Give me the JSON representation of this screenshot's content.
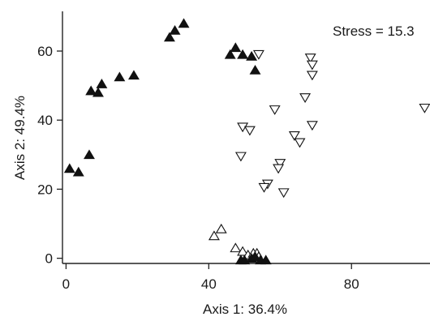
{
  "chart_data": {
    "type": "scatter",
    "title": "",
    "xlabel": "Axis 1: 36.4%",
    "ylabel": "Axis 2: 49.4%",
    "annotation": "Stress = 15.3",
    "xlim": [
      -1,
      102
    ],
    "ylim": [
      -1.5,
      71.5
    ],
    "xticks": [
      0,
      40,
      80
    ],
    "yticks": [
      0,
      20,
      40,
      60
    ],
    "grid": false,
    "legend": "none",
    "series": [
      {
        "marker": "filled-triangle-up",
        "color": "#111111",
        "points": [
          [
            1,
            26
          ],
          [
            3.5,
            25
          ],
          [
            6.5,
            30
          ],
          [
            7,
            48.5
          ],
          [
            9,
            48
          ],
          [
            10,
            50.5
          ],
          [
            15,
            52.5
          ],
          [
            19,
            53
          ],
          [
            29,
            64
          ],
          [
            30.5,
            66
          ],
          [
            33,
            68
          ],
          [
            46,
            59
          ],
          [
            47.5,
            61
          ],
          [
            49.5,
            59
          ],
          [
            52,
            58.5
          ],
          [
            53,
            54.5
          ]
        ]
      },
      {
        "marker": "open-triangle-down",
        "color": "#111111",
        "points": [
          [
            54,
            59
          ],
          [
            68.5,
            58
          ],
          [
            69,
            56
          ],
          [
            69,
            53
          ],
          [
            58.5,
            43
          ],
          [
            67,
            46.5
          ],
          [
            49.5,
            38
          ],
          [
            51.5,
            37
          ],
          [
            64,
            35.5
          ],
          [
            65.5,
            33.5
          ],
          [
            69,
            38.5
          ],
          [
            49,
            29.5
          ],
          [
            60,
            27.5
          ],
          [
            59.5,
            26
          ],
          [
            56.5,
            21.5
          ],
          [
            55.5,
            20.5
          ],
          [
            61,
            19
          ],
          [
            100.5,
            43.5
          ]
        ]
      },
      {
        "marker": "open-triangle-up",
        "color": "#111111",
        "points": [
          [
            41.5,
            6.5
          ],
          [
            43.5,
            8.5
          ],
          [
            47.5,
            3
          ],
          [
            49.5,
            2
          ],
          [
            51,
            1
          ],
          [
            52.5,
            1.5
          ],
          [
            53.5,
            1.5
          ],
          [
            54,
            0.5
          ]
        ]
      },
      {
        "marker": "filled-triangle-up",
        "color": "#111111",
        "points": [
          [
            49,
            -0.5
          ],
          [
            50,
            -0.5
          ],
          [
            52,
            0
          ],
          [
            53,
            0.5
          ],
          [
            54.5,
            -0.5
          ],
          [
            56,
            -0.5
          ]
        ]
      }
    ]
  }
}
